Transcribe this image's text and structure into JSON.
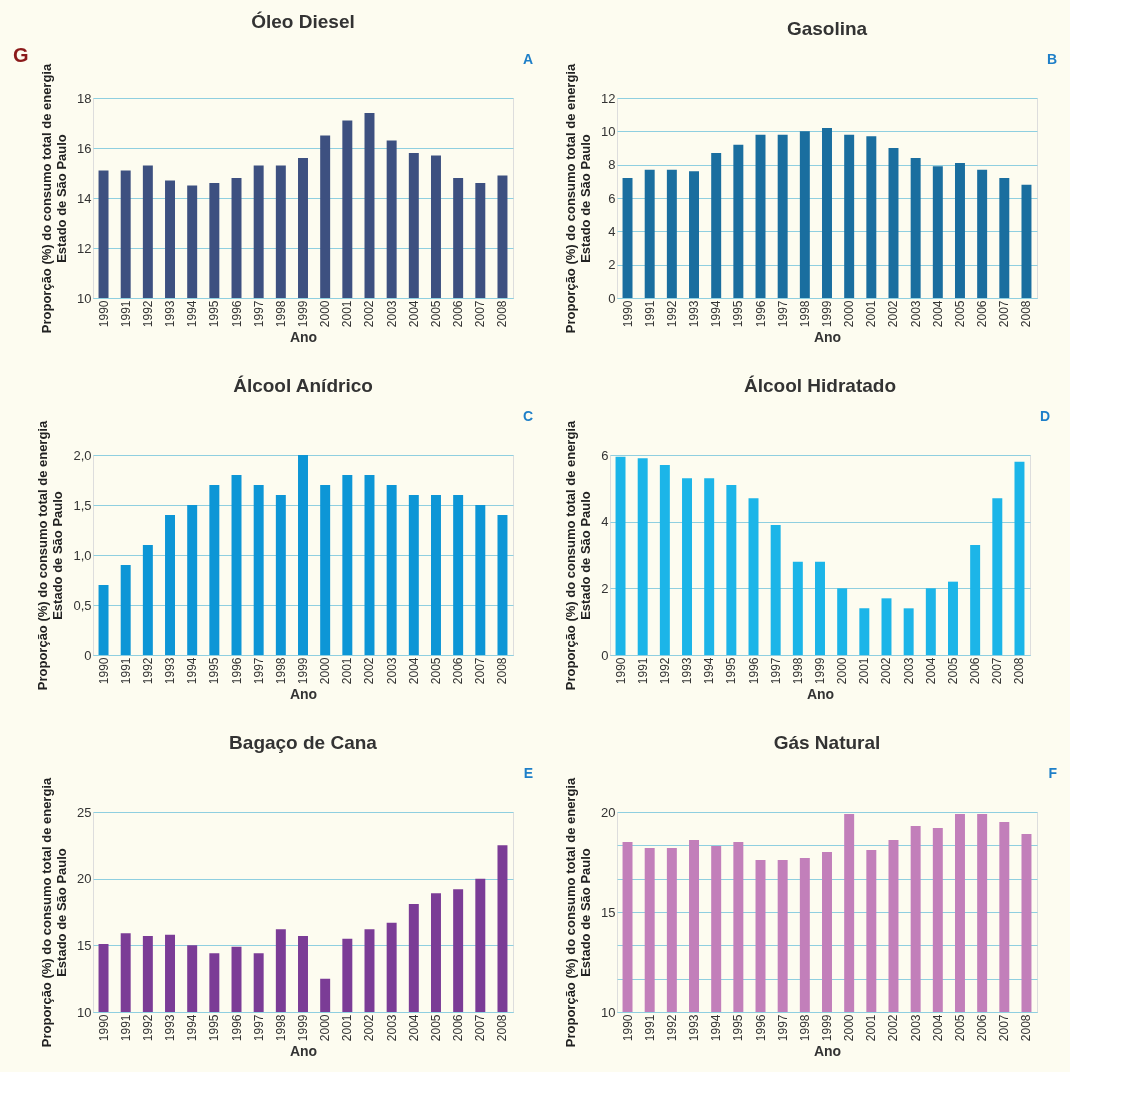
{
  "chart_data": [
    {
      "type": "bar",
      "title": "Óleo Diesel",
      "xlabel": "Ano",
      "ylabel": "Proporção (%) do consumo total de energia\nEstado de São Paulo",
      "annotations": [
        "A",
        "G"
      ],
      "categories": [
        "1990",
        "1991",
        "1992",
        "1993",
        "1994",
        "1995",
        "1996",
        "1997",
        "1998",
        "1999",
        "2000",
        "2001",
        "2002",
        "2003",
        "2004",
        "2005",
        "2006",
        "2007",
        "2008"
      ],
      "values": [
        15.1,
        15.1,
        15.3,
        14.7,
        14.5,
        14.6,
        14.8,
        15.3,
        15.3,
        15.6,
        16.5,
        17.1,
        17.4,
        16.3,
        15.8,
        15.7,
        14.8,
        14.6,
        14.9
      ],
      "color": "#3d5080",
      "ylim": [
        10,
        18
      ],
      "yticks": [
        10,
        12,
        14,
        16,
        18
      ],
      "grid": "y"
    },
    {
      "type": "bar",
      "title": "Gasolina",
      "xlabel": "Ano",
      "ylabel": "Proporção (%) do consumo total de energia\nEstado de São Paulo",
      "annotations": [
        "B"
      ],
      "categories": [
        "1990",
        "1991",
        "1992",
        "1993",
        "1994",
        "1995",
        "1996",
        "1997",
        "1998",
        "1999",
        "2000",
        "2001",
        "2002",
        "2003",
        "2004",
        "2005",
        "2006",
        "2007",
        "2008"
      ],
      "values": [
        7.2,
        7.7,
        7.7,
        7.6,
        8.7,
        9.2,
        9.8,
        9.8,
        10.0,
        10.2,
        9.8,
        9.7,
        9.0,
        8.4,
        7.9,
        8.1,
        7.7,
        7.2,
        6.8
      ],
      "color": "#1a6e9f",
      "ylim": [
        0,
        12
      ],
      "yticks": [
        0,
        2,
        4,
        6,
        8,
        10,
        12
      ],
      "grid": "y"
    },
    {
      "type": "bar",
      "title": "Álcool Anídrico",
      "xlabel": "Ano",
      "ylabel": "Proporção (%) do consumo total de energia\nEstado de São Paulo",
      "annotations": [
        "C"
      ],
      "categories": [
        "1990",
        "1991",
        "1992",
        "1993",
        "1994",
        "1995",
        "1996",
        "1997",
        "1998",
        "1999",
        "2000",
        "2001",
        "2002",
        "2003",
        "2004",
        "2005",
        "2006",
        "2007",
        "2008"
      ],
      "values": [
        0.7,
        0.9,
        1.1,
        1.4,
        1.5,
        1.7,
        1.8,
        1.7,
        1.6,
        2.0,
        1.7,
        1.8,
        1.8,
        1.7,
        1.6,
        1.6,
        1.6,
        1.5,
        1.4
      ],
      "color": "#0d96d6",
      "ylim": [
        0,
        2
      ],
      "yticks": [
        0,
        {
          "value": 0.5,
          "label": "0,5"
        },
        {
          "value": 1,
          "label": "1,0"
        },
        {
          "value": 1.5,
          "label": "1,5"
        },
        {
          "value": 2,
          "label": "2,0"
        }
      ],
      "grid": "y"
    },
    {
      "type": "bar",
      "title": "Álcool Hidratado",
      "xlabel": "Ano",
      "ylabel": "Proporção (%) do consumo total de energia\nEstado de São Paulo",
      "annotations": [
        "D"
      ],
      "categories": [
        "1990",
        "1991",
        "1992",
        "1993",
        "1994",
        "1995",
        "1996",
        "1997",
        "1998",
        "1999",
        "2000",
        "2001",
        "2002",
        "2003",
        "2004",
        "2005",
        "2006",
        "2007",
        "2008"
      ],
      "values": [
        5.95,
        5.9,
        5.7,
        5.3,
        5.3,
        5.1,
        4.7,
        3.9,
        2.8,
        2.8,
        2.0,
        1.4,
        1.7,
        1.4,
        2.0,
        2.2,
        3.3,
        4.7,
        5.8
      ],
      "color": "#1cb5e8",
      "ylim": [
        0,
        6
      ],
      "yticks": [
        0,
        2,
        4,
        6
      ],
      "grid": "y"
    },
    {
      "type": "bar",
      "title": "Bagaço de Cana",
      "xlabel": "Ano",
      "ylabel": "Proporção (%) do consumo total de energia\nEstado de São Paulo",
      "annotations": [
        "E"
      ],
      "categories": [
        "1990",
        "1991",
        "1992",
        "1993",
        "1994",
        "1995",
        "1996",
        "1997",
        "1998",
        "1999",
        "2000",
        "2001",
        "2002",
        "2003",
        "2004",
        "2005",
        "2006",
        "2007",
        "2008"
      ],
      "values": [
        15.1,
        15.9,
        15.7,
        15.8,
        15.0,
        14.4,
        14.9,
        14.4,
        16.2,
        15.7,
        12.5,
        15.5,
        16.2,
        16.7,
        18.1,
        18.9,
        19.2,
        20.0,
        22.5
      ],
      "color": "#7b3c96",
      "ylim": [
        10,
        25
      ],
      "yticks": [
        10,
        15,
        20,
        25
      ],
      "grid": "y"
    },
    {
      "type": "bar",
      "title": "Gás Natural",
      "xlabel": "Ano",
      "ylabel": "Proporção (%) do consumo total de energia\nEstado de São Paulo",
      "annotations": [
        "F"
      ],
      "categories": [
        "1990",
        "1991",
        "1992",
        "1993",
        "1994",
        "1995",
        "1996",
        "1997",
        "1998",
        "1999",
        "2000",
        "2001",
        "2002",
        "2003",
        "2004",
        "2005",
        "2006",
        "2007",
        "2008"
      ],
      "values": [
        18.5,
        18.2,
        18.2,
        18.6,
        18.3,
        18.5,
        17.6,
        17.6,
        17.7,
        18.0,
        19.9,
        18.1,
        18.6,
        19.3,
        19.2,
        19.9,
        19.9,
        19.5,
        18.9
      ],
      "color": "#c27fba",
      "ylim": [
        10,
        20
      ],
      "yticks": [
        10,
        {
          "value": 11.67,
          "label": null
        },
        {
          "value": 13.33,
          "label": null
        },
        15,
        {
          "value": 16.67,
          "label": null
        },
        {
          "value": 18.33,
          "label": null
        },
        20
      ],
      "grid": "y"
    }
  ]
}
